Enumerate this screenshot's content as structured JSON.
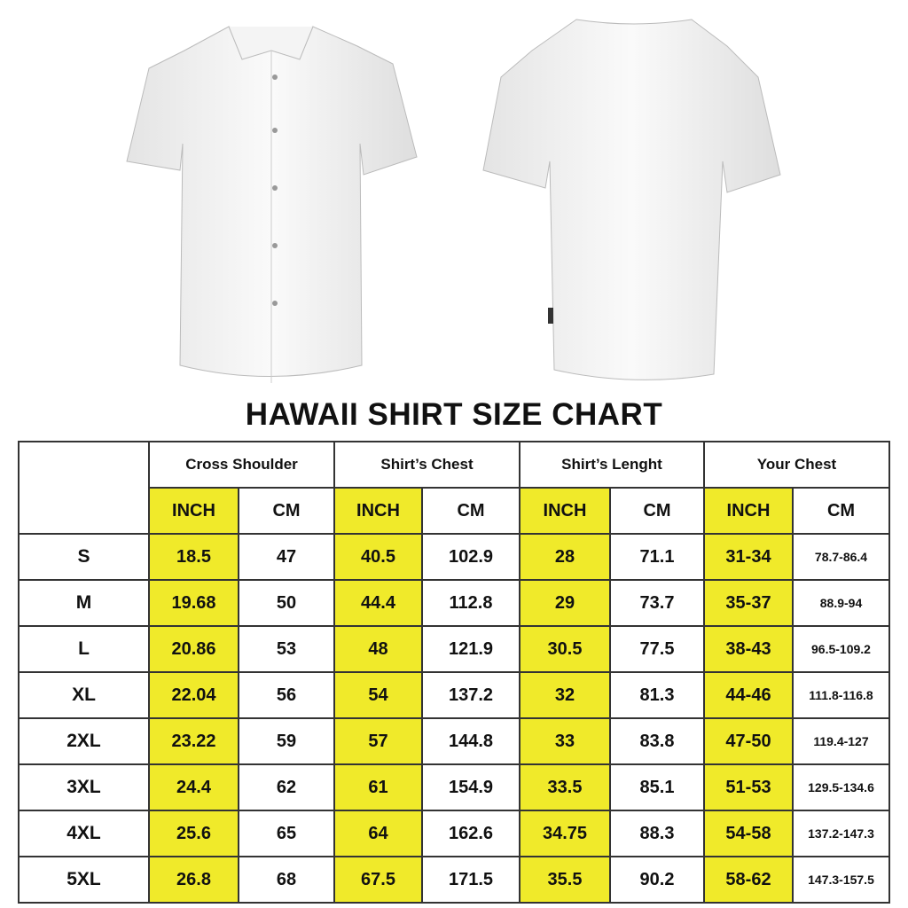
{
  "title": "HAWAII SHIRT SIZE CHART",
  "colors": {
    "inch_highlight": "#f0ea2a",
    "border": "#333333"
  },
  "groups": [
    "Cross Shoulder",
    "Shirt’s Chest",
    "Shirt’s Lenght",
    "Your Chest"
  ],
  "units": {
    "inch": "INCH",
    "cm": "CM"
  },
  "rows": [
    {
      "size": "S",
      "values": [
        "18.5",
        "47",
        "40.5",
        "102.9",
        "28",
        "71.1",
        "31-34",
        "78.7-86.4"
      ]
    },
    {
      "size": "M",
      "values": [
        "19.68",
        "50",
        "44.4",
        "112.8",
        "29",
        "73.7",
        "35-37",
        "88.9-94"
      ]
    },
    {
      "size": "L",
      "values": [
        "20.86",
        "53",
        "48",
        "121.9",
        "30.5",
        "77.5",
        "38-43",
        "96.5-109.2"
      ]
    },
    {
      "size": "XL",
      "values": [
        "22.04",
        "56",
        "54",
        "137.2",
        "32",
        "81.3",
        "44-46",
        "111.8-116.8"
      ]
    },
    {
      "size": "2XL",
      "values": [
        "23.22",
        "59",
        "57",
        "144.8",
        "33",
        "83.8",
        "47-50",
        "119.4-127"
      ]
    },
    {
      "size": "3XL",
      "values": [
        "24.4",
        "62",
        "61",
        "154.9",
        "33.5",
        "85.1",
        "51-53",
        "129.5-134.6"
      ]
    },
    {
      "size": "4XL",
      "values": [
        "25.6",
        "65",
        "64",
        "162.6",
        "34.75",
        "88.3",
        "54-58",
        "137.2-147.3"
      ]
    },
    {
      "size": "5XL",
      "values": [
        "26.8",
        "68",
        "67.5",
        "171.5",
        "35.5",
        "90.2",
        "58-62",
        "147.3-157.5"
      ]
    }
  ]
}
